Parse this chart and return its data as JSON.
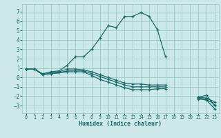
{
  "xlabel": "Humidex (Indice chaleur)",
  "bg_color": "#cce8e8",
  "grid_color": "#99cccc",
  "line_color": "#1a6b6b",
  "xlim": [
    -0.5,
    23.5
  ],
  "ylim": [
    -3.8,
    7.8
  ],
  "yticks": [
    -3,
    -2,
    -1,
    0,
    1,
    2,
    3,
    4,
    5,
    6,
    7
  ],
  "xticks": [
    0,
    1,
    2,
    3,
    4,
    5,
    6,
    7,
    8,
    9,
    10,
    11,
    12,
    13,
    14,
    15,
    16,
    17,
    18,
    19,
    20,
    21,
    22,
    23
  ],
  "series": [
    {
      "x": [
        0,
        1,
        2,
        3,
        4,
        5,
        6,
        7,
        8,
        9,
        10,
        11,
        12,
        13,
        14,
        15,
        16,
        17,
        21,
        22,
        23
      ],
      "y": [
        0.9,
        0.9,
        0.4,
        0.6,
        0.7,
        1.3,
        2.2,
        2.2,
        3.0,
        4.2,
        5.5,
        5.3,
        6.5,
        6.5,
        6.9,
        6.5,
        5.1,
        2.2,
        -2.1,
        -1.9,
        -3.0
      ]
    },
    {
      "x": [
        0,
        1,
        2,
        3,
        4,
        5,
        6,
        7,
        8,
        9,
        10,
        11,
        12,
        13,
        14,
        15,
        16,
        17,
        21,
        22,
        23
      ],
      "y": [
        0.9,
        0.9,
        0.3,
        0.5,
        0.6,
        0.9,
        0.9,
        0.8,
        0.6,
        0.3,
        0.0,
        -0.3,
        -0.6,
        -0.7,
        -0.7,
        -0.8,
        -0.8,
        -0.8,
        -2.1,
        -2.2,
        -2.6
      ]
    },
    {
      "x": [
        0,
        1,
        2,
        3,
        4,
        5,
        6,
        7,
        8,
        9,
        10,
        11,
        12,
        13,
        14,
        15,
        16,
        17,
        21,
        22,
        23
      ],
      "y": [
        0.9,
        0.9,
        0.3,
        0.4,
        0.5,
        0.7,
        0.7,
        0.7,
        0.4,
        0.1,
        -0.2,
        -0.5,
        -0.8,
        -1.0,
        -1.0,
        -1.0,
        -1.0,
        -1.0,
        -2.2,
        -2.3,
        -2.9
      ]
    },
    {
      "x": [
        0,
        1,
        2,
        3,
        4,
        5,
        6,
        7,
        8,
        9,
        10,
        11,
        12,
        13,
        14,
        15,
        16,
        17,
        21,
        22,
        23
      ],
      "y": [
        0.9,
        0.9,
        0.3,
        0.4,
        0.5,
        0.6,
        0.6,
        0.6,
        0.2,
        -0.2,
        -0.5,
        -0.8,
        -1.1,
        -1.3,
        -1.3,
        -1.3,
        -1.2,
        -1.2,
        -2.3,
        -2.4,
        -3.35
      ]
    }
  ]
}
